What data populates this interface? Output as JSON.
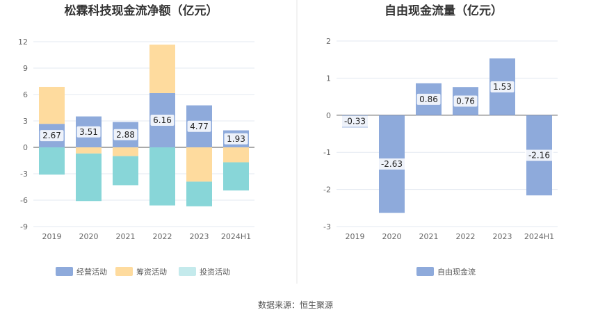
{
  "footer": {
    "source": "数据来源：恒生聚源"
  },
  "colors": {
    "operating": "#8eaadb",
    "financing": "#fedb9e",
    "investing": "#88d6d8",
    "investing_legend": "#c4eaec",
    "free_cash_flow": "#8eaadb",
    "grid": "#e3e8f0",
    "axis": "#555555",
    "divider": "#e6e6e6"
  },
  "chart_data": [
    {
      "type": "bar",
      "stacked": true,
      "title": "松霖科技现金流净额（亿元）",
      "categories": [
        "2019",
        "2020",
        "2021",
        "2022",
        "2023",
        "2024H1"
      ],
      "ylim": [
        -9,
        12
      ],
      "yticks": [
        "12",
        "9",
        "6",
        "3",
        "0",
        "-3",
        "-6",
        "-9"
      ],
      "ytick_values": [
        12,
        9,
        6,
        3,
        0,
        -3,
        -6,
        -9
      ],
      "grid": true,
      "legend_position": "bottom",
      "series": [
        {
          "name": "经营活动",
          "values": [
            2.67,
            3.51,
            2.88,
            6.16,
            4.77,
            1.93
          ],
          "labels": [
            "2.67",
            "3.51",
            "2.88",
            "6.16",
            "4.77",
            "1.93"
          ]
        },
        {
          "name": "筹资活动",
          "values": [
            4.2,
            -0.7,
            -1.0,
            5.5,
            -3.9,
            -1.7
          ]
        },
        {
          "name": "投资活动",
          "values": [
            -3.1,
            -5.4,
            -3.3,
            -6.6,
            -2.8,
            -3.2
          ]
        }
      ]
    },
    {
      "type": "bar",
      "title": "自由现金流量（亿元）",
      "categories": [
        "2019",
        "2020",
        "2021",
        "2022",
        "2023",
        "2024H1"
      ],
      "ylim": [
        -3,
        2
      ],
      "yticks": [
        "2",
        "1",
        "0",
        "-1",
        "-2",
        "-3"
      ],
      "ytick_values": [
        2,
        1,
        0,
        -1,
        -2,
        -3
      ],
      "grid": true,
      "legend_position": "bottom",
      "series": [
        {
          "name": "自由现金流",
          "values": [
            -0.33,
            -2.63,
            0.86,
            0.76,
            1.53,
            -2.16
          ],
          "labels": [
            "-0.33",
            "-2.63",
            "0.86",
            "0.76",
            "1.53",
            "-2.16"
          ]
        }
      ]
    }
  ]
}
